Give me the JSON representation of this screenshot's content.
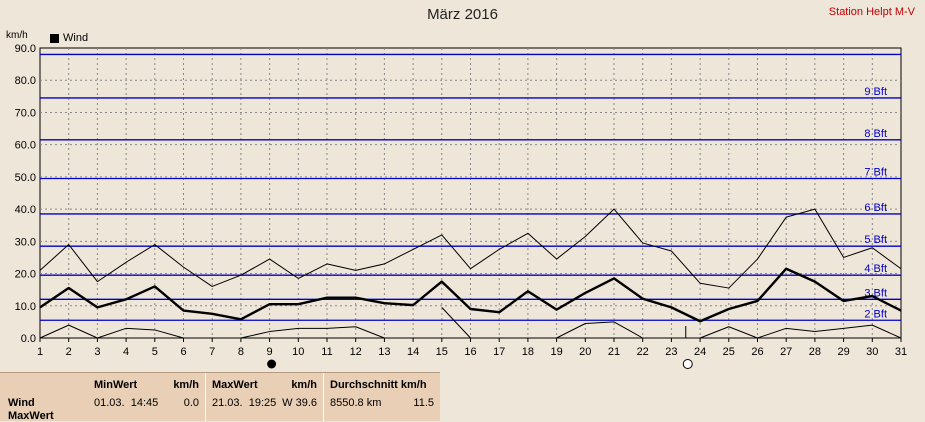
{
  "header": {
    "title": "März 2016",
    "station": "Station Helpt M-V"
  },
  "chart_data": {
    "type": "line",
    "ylabel": "km/h",
    "ylim": [
      0,
      90
    ],
    "yticks": [
      "0.0",
      "10.0",
      "20.0",
      "30.0",
      "40.0",
      "50.0",
      "60.0",
      "70.0",
      "80.0",
      "90.0"
    ],
    "x": [
      1,
      2,
      3,
      4,
      5,
      6,
      7,
      8,
      9,
      10,
      11,
      12,
      13,
      14,
      15,
      16,
      17,
      18,
      19,
      20,
      21,
      22,
      23,
      24,
      25,
      26,
      27,
      28,
      29,
      30,
      31
    ],
    "legend": [
      {
        "name": "Wind",
        "color": "#000000"
      }
    ],
    "series": [
      {
        "name": "Wind",
        "role": "mean",
        "values": [
          9.5,
          15.5,
          9.5,
          12,
          16,
          8.5,
          7.5,
          5.8,
          10.5,
          10.5,
          12.5,
          12.5,
          10.8,
          10.2,
          17.5,
          9,
          8,
          14.5,
          8.8,
          14,
          18.5,
          12.2,
          9.5,
          5.2,
          9,
          11.5,
          21.5,
          17.5,
          11.5,
          13,
          8.5
        ]
      },
      {
        "role": "max",
        "values": [
          21,
          29,
          17.5,
          23.5,
          29,
          22,
          16,
          19.5,
          24.5,
          18.5,
          23,
          21,
          23,
          27.5,
          32,
          21.5,
          27.5,
          32.5,
          24.5,
          31.5,
          40,
          29.5,
          27,
          17,
          15.5,
          24.5,
          37.5,
          40,
          25,
          28,
          21.5
        ]
      },
      {
        "role": "min",
        "values": [
          0,
          4,
          0,
          3,
          2.5,
          0,
          null,
          0,
          2,
          3,
          3,
          3.5,
          0,
          null,
          9.5,
          0,
          null,
          null,
          0,
          4.5,
          5,
          0,
          null,
          0,
          3.5,
          0,
          3,
          2,
          3,
          4,
          0
        ]
      }
    ],
    "beaufort": [
      {
        "label": "2 Bft",
        "value": 5.5
      },
      {
        "label": "3 Bft",
        "value": 12
      },
      {
        "label": "4 Bft",
        "value": 19.5
      },
      {
        "label": "5 Bft",
        "value": 28.5
      },
      {
        "label": "6 Bft",
        "value": 38.5
      },
      {
        "label": "7 Bft",
        "value": 49.5
      },
      {
        "label": "8 Bft",
        "value": 61.5
      },
      {
        "label": "9 Bft",
        "value": 74.5
      },
      {
        "label": "",
        "value": 88
      }
    ],
    "moon": [
      {
        "day": 9,
        "phase": "new"
      },
      {
        "day": 23.5,
        "phase": "full"
      }
    ],
    "grid": true
  },
  "stats": {
    "row_labels": [
      "Wind",
      "MaxWert"
    ],
    "min": {
      "label": "MinWert",
      "unit": "km/h",
      "date": "01.03.",
      "time": "14:45",
      "value": "0.0"
    },
    "max": {
      "label": "MaxWert",
      "unit": "km/h",
      "date": "21.03.",
      "time": "19:25",
      "value": "W 39.6"
    },
    "avg": {
      "label": "Durchschnitt km/h",
      "distance": "8550.8 km",
      "value": "11.5"
    }
  }
}
